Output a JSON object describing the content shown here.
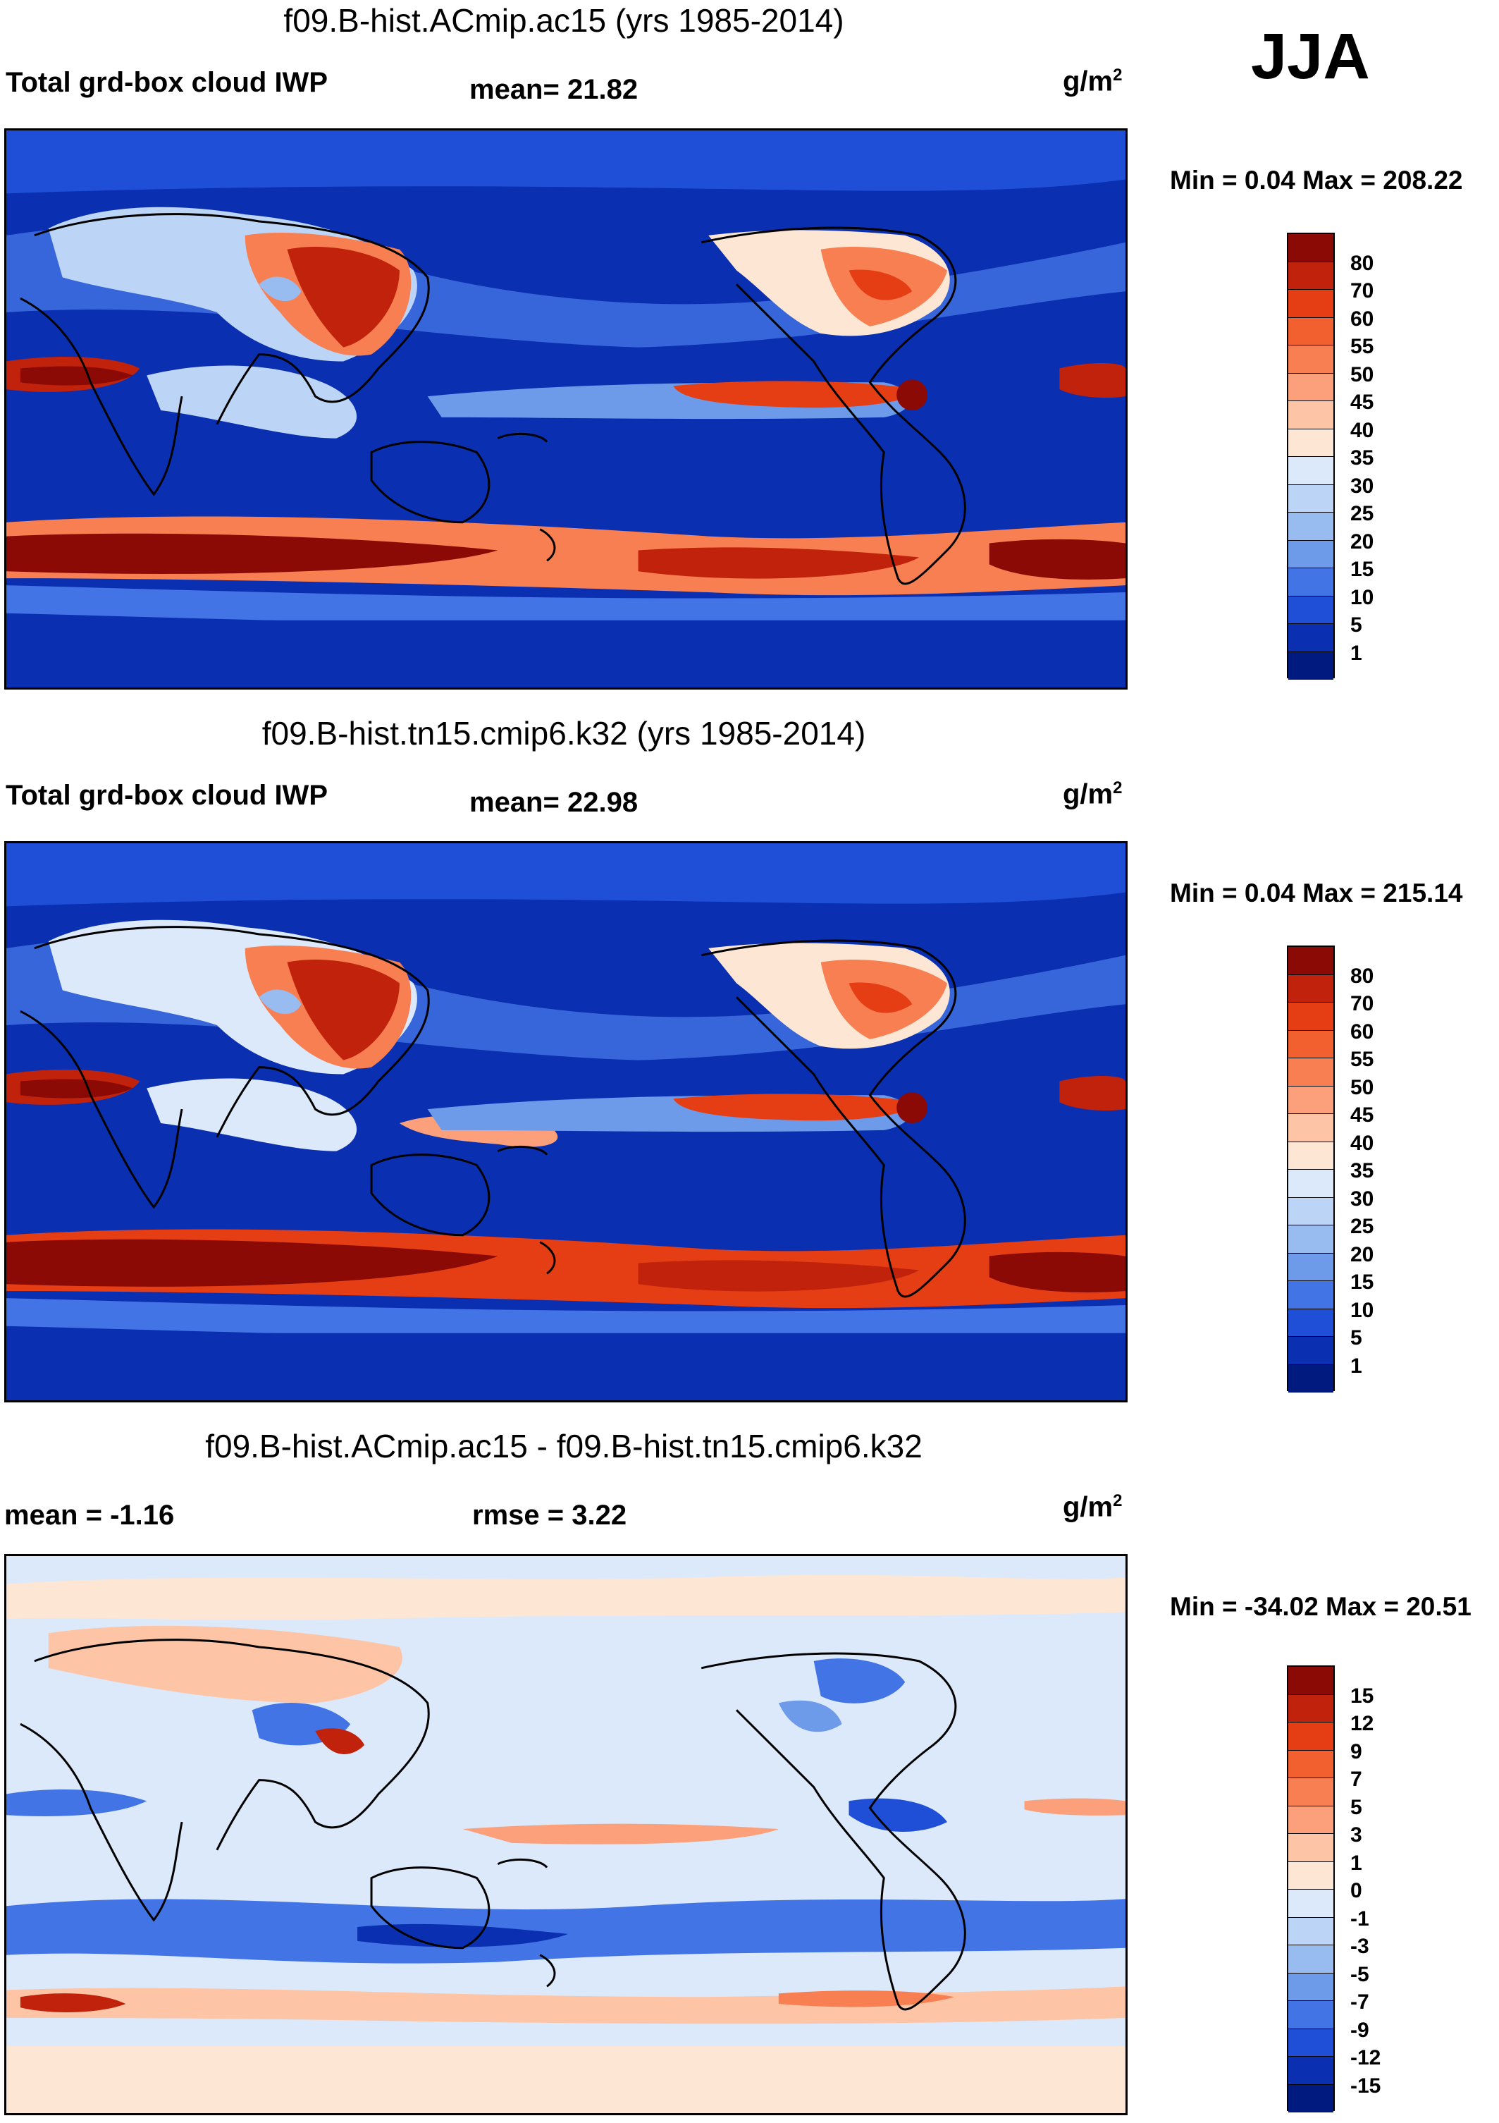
{
  "season": "JJA",
  "panels": [
    {
      "title": "f09.B-hist.ACmip.ac15 (yrs 1985-2014)",
      "left_label": "Total grd-box cloud IWP",
      "center_label": "mean=  21.82",
      "units": "g/m",
      "units_exp": "2",
      "minmax": "Min =   0.04 Max = 208.22",
      "colorbar": {
        "labels": [
          "80",
          "70",
          "60",
          "55",
          "50",
          "45",
          "40",
          "35",
          "30",
          "25",
          "20",
          "15",
          "10",
          "5",
          "1"
        ],
        "colors": [
          "#8b0a06",
          "#c1220c",
          "#e53d14",
          "#f2602f",
          "#f77f52",
          "#fba07a",
          "#fdc4a6",
          "#fde7d4",
          "#dbe9fb",
          "#bcd4f6",
          "#98bbf0",
          "#6d9bea",
          "#4274e6",
          "#204fd7",
          "#0a2fb0",
          "#001a80"
        ]
      },
      "chart_data": {
        "type": "heatmap",
        "title": "f09.B-hist.ACmip.ac15 (yrs 1985-2014)",
        "variable": "Total grd-box cloud IWP",
        "mean": 21.82,
        "min": 0.04,
        "max": 208.22,
        "contour_levels": [
          1,
          5,
          10,
          15,
          20,
          25,
          30,
          35,
          40,
          45,
          50,
          55,
          60,
          70,
          80
        ]
      }
    },
    {
      "title": "f09.B-hist.tn15.cmip6.k32 (yrs 1985-2014)",
      "left_label": "Total grd-box cloud IWP",
      "center_label": "mean=  22.98",
      "units": "g/m",
      "units_exp": "2",
      "minmax": "Min =   0.04 Max = 215.14",
      "colorbar": {
        "labels": [
          "80",
          "70",
          "60",
          "55",
          "50",
          "45",
          "40",
          "35",
          "30",
          "25",
          "20",
          "15",
          "10",
          "5",
          "1"
        ],
        "colors": [
          "#8b0a06",
          "#c1220c",
          "#e53d14",
          "#f2602f",
          "#f77f52",
          "#fba07a",
          "#fdc4a6",
          "#fde7d4",
          "#dbe9fb",
          "#bcd4f6",
          "#98bbf0",
          "#6d9bea",
          "#4274e6",
          "#204fd7",
          "#0a2fb0",
          "#001a80"
        ]
      },
      "chart_data": {
        "type": "heatmap",
        "title": "f09.B-hist.tn15.cmip6.k32 (yrs 1985-2014)",
        "variable": "Total grd-box cloud IWP",
        "mean": 22.98,
        "min": 0.04,
        "max": 215.14,
        "contour_levels": [
          1,
          5,
          10,
          15,
          20,
          25,
          30,
          35,
          40,
          45,
          50,
          55,
          60,
          70,
          80
        ]
      }
    },
    {
      "title": "f09.B-hist.ACmip.ac15 - f09.B-hist.tn15.cmip6.k32",
      "left_label": "mean =  -1.16",
      "center_label": "rmse =    3.22",
      "units": "g/m",
      "units_exp": "2",
      "minmax": "Min = -34.02 Max =  20.51",
      "colorbar": {
        "labels": [
          "15",
          "12",
          "9",
          "7",
          "5",
          "3",
          "1",
          "0",
          "-1",
          "-3",
          "-5",
          "-7",
          "-9",
          "-12",
          "-15"
        ],
        "colors": [
          "#8b0a06",
          "#c1220c",
          "#e53d14",
          "#f2602f",
          "#f77f52",
          "#fba07a",
          "#fdc4a6",
          "#fde7d4",
          "#dbe9fb",
          "#bcd4f6",
          "#98bbf0",
          "#6d9bea",
          "#4274e6",
          "#204fd7",
          "#0a2fb0",
          "#001a80"
        ]
      },
      "chart_data": {
        "type": "heatmap",
        "title": "f09.B-hist.ACmip.ac15 - f09.B-hist.tn15.cmip6.k32",
        "mean": -1.16,
        "rmse": 3.22,
        "min": -34.02,
        "max": 20.51,
        "contour_levels": [
          -15,
          -12,
          -9,
          -7,
          -5,
          -3,
          -1,
          0,
          1,
          3,
          5,
          7,
          9,
          12,
          15
        ]
      }
    }
  ]
}
